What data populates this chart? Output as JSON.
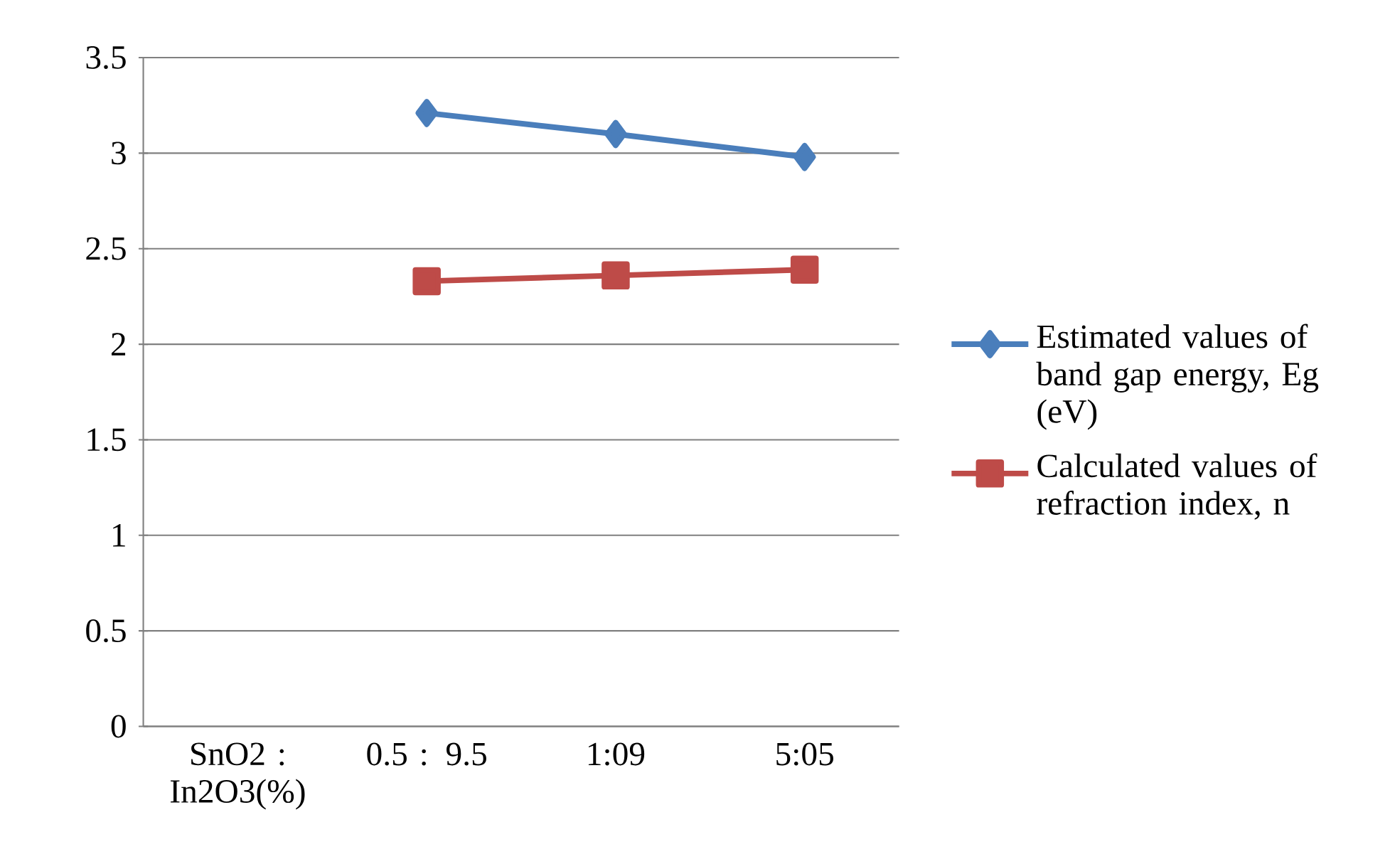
{
  "chart_data": {
    "type": "line",
    "categories": [
      "SnO2 : In2O3(%)",
      "0.5 : 9.5",
      "1:09",
      "5:05"
    ],
    "series": [
      {
        "name": "Estimated values of band gap energy, Eg (eV)",
        "color": "#4a7ebb",
        "marker": "diamond",
        "values": [
          null,
          3.21,
          3.1,
          2.98
        ]
      },
      {
        "name": "Calculated values of refraction index, n",
        "color": "#be4b48",
        "marker": "square",
        "values": [
          null,
          2.33,
          2.36,
          2.39
        ]
      }
    ],
    "ylim": [
      0,
      3.5
    ],
    "yticks": [
      0,
      0.5,
      1,
      1.5,
      2,
      2.5,
      3,
      3.5
    ],
    "grid": "y",
    "legend": "right",
    "line_style": "solid"
  }
}
